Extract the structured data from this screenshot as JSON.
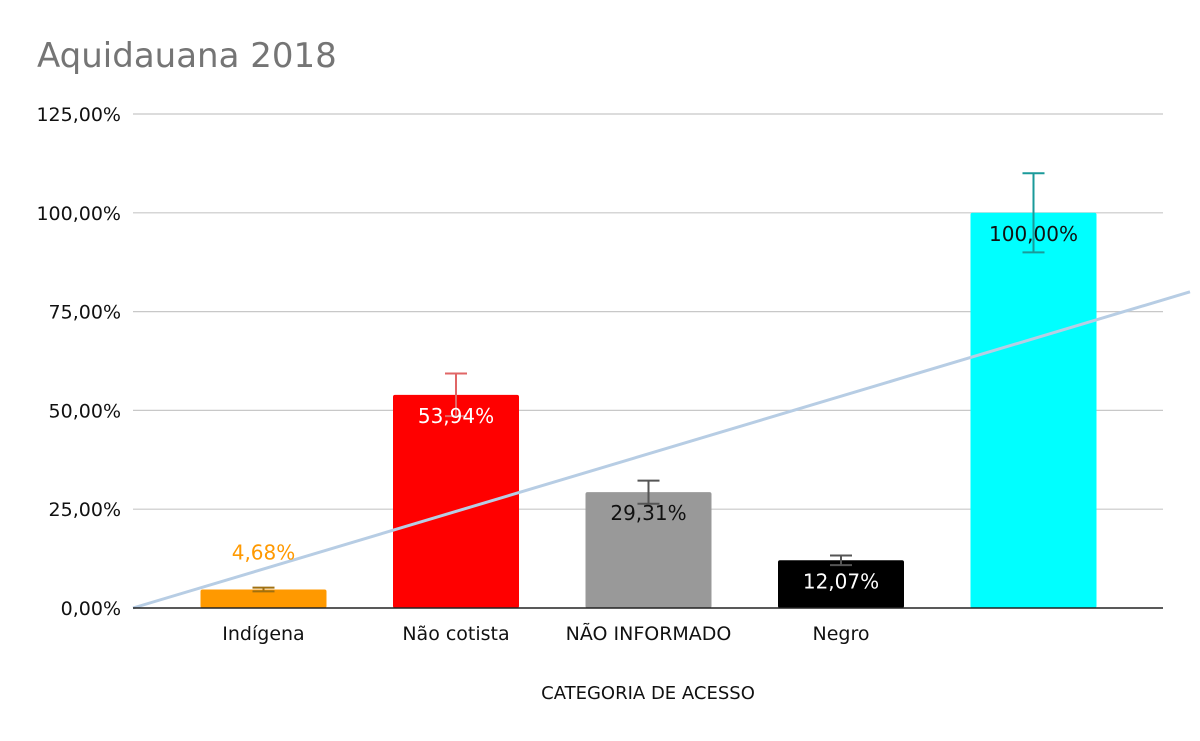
{
  "chart_data": {
    "type": "bar",
    "title": "Aquidauana 2018",
    "xlabel": "CATEGORIA DE ACESSO",
    "ylabel": "",
    "ylim": [
      0,
      125
    ],
    "yticks": [
      0,
      25,
      50,
      75,
      100,
      125
    ],
    "ytick_labels": [
      "0,00%",
      "25,00%",
      "50,00%",
      "75,00%",
      "100,00%",
      "125,00%"
    ],
    "grid": true,
    "legend": "none",
    "categories": [
      "Indígena",
      "Não cotista",
      "NÃO INFORMADO",
      "Negro",
      ""
    ],
    "values": [
      4.68,
      53.94,
      29.31,
      12.07,
      100.0
    ],
    "data_labels": [
      "4,68%",
      "53,94%",
      "29,31%",
      "12,07%",
      "100,00%"
    ],
    "error_bars": [
      0.47,
      5.39,
      2.93,
      1.21,
      10.0
    ],
    "colors": [
      "#ff9900",
      "#ff0000",
      "#999999",
      "#000000",
      "#00ffff"
    ],
    "label_colors": [
      "#ff9900",
      "#ffffff",
      "#111111",
      "#ffffff",
      "#111111"
    ],
    "error_colors": [
      "#a07010",
      "#e06666",
      "#555555",
      "#555555",
      "#1a9a9a"
    ],
    "trendline": {
      "type": "linear",
      "color": "#b7cde4",
      "start_y": 0,
      "end_y": 80
    }
  }
}
